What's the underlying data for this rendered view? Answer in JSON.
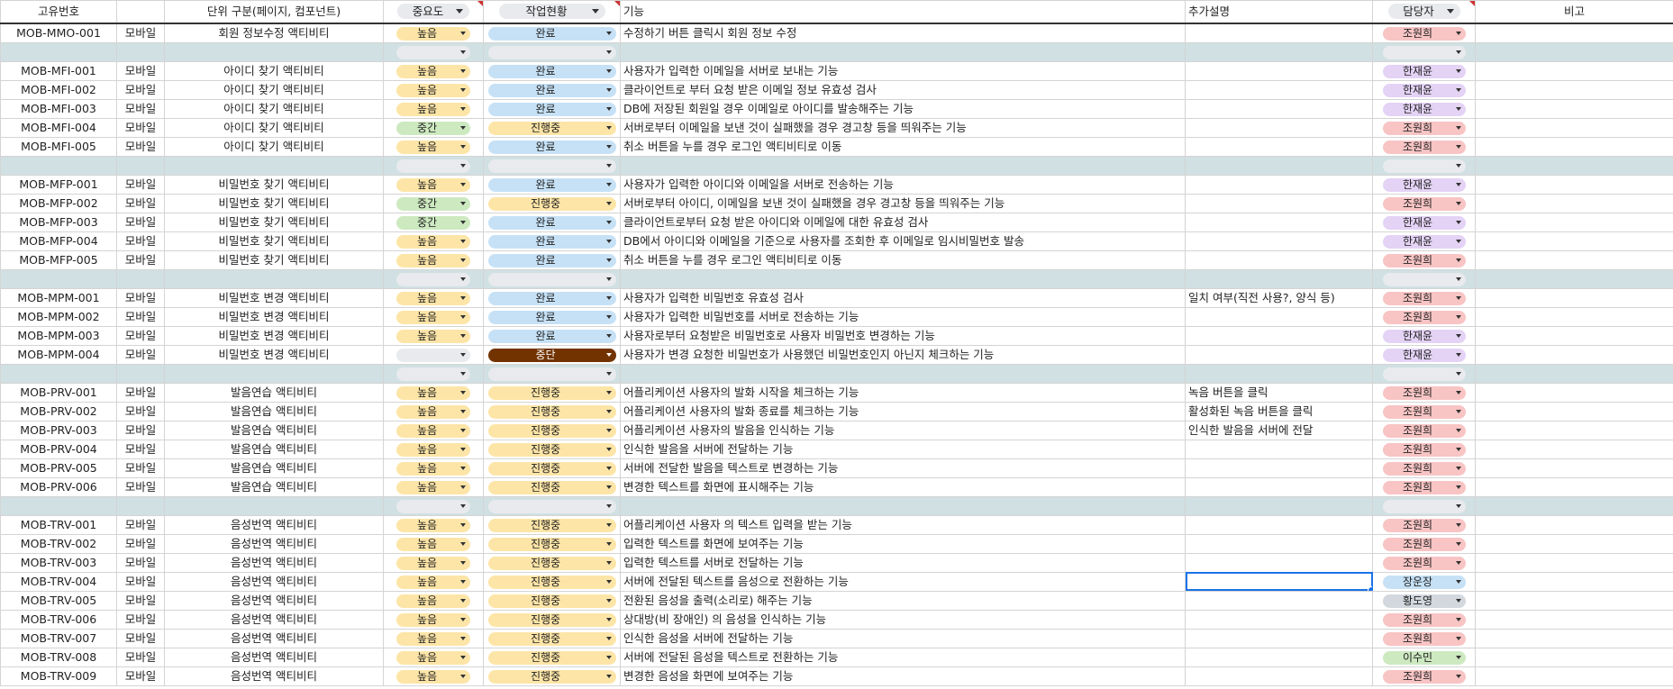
{
  "colors": {
    "imp": {
      "높음": "#fde5a7",
      "중간": "#cde9c0",
      "": "#e8eaed"
    },
    "status": {
      "완료": "#c6e1f6",
      "진행중": "#fde5a7",
      "중단": "#723300",
      "": "#e8eaed"
    },
    "status_text": {
      "중단": "#ffffff"
    },
    "owner": {
      "조원희": "#f8c4c4",
      "한재윤": "#e4d3f5",
      "장운장": "#c6e1f6",
      "황도영": "#d2d8de",
      "이수민": "#cde9c0",
      "": "#e8eaed"
    }
  },
  "headers": {
    "id": "고유번호",
    "type": "",
    "unit": "단위 구분(페이지, 컴포넌트)",
    "importance": "중요도",
    "status": "작업현황",
    "function": "기능",
    "note": "추가설명",
    "owner": "담당자",
    "remarks": "비고"
  },
  "rows": [
    {
      "id": "MOB-MMO-001",
      "type": "모바일",
      "unit": "회원 정보수정 액티비티",
      "imp": "높음",
      "status": "완료",
      "func": "수정하기 버튼 클릭시 회원 정보 수정",
      "note": "",
      "owner": "조원희"
    },
    {
      "sep": true
    },
    {
      "id": "MOB-MFI-001",
      "type": "모바일",
      "unit": "아이디 찾기 액티비티",
      "imp": "높음",
      "status": "완료",
      "func": "사용자가 입력한 이메일을 서버로 보내는 기능",
      "note": "",
      "owner": "한재윤"
    },
    {
      "id": "MOB-MFI-002",
      "type": "모바일",
      "unit": "아이디 찾기 액티비티",
      "imp": "높음",
      "status": "완료",
      "func": "클라이언트로 부터 요청 받은 이메일 정보 유효성 검사",
      "note": "",
      "owner": "한재윤"
    },
    {
      "id": "MOB-MFI-003",
      "type": "모바일",
      "unit": "아이디 찾기 액티비티",
      "imp": "높음",
      "status": "완료",
      "func": "DB에 저장된 회원일 경우 이메일로 아이디를 발송해주는 기능",
      "note": "",
      "owner": "한재윤"
    },
    {
      "id": "MOB-MFI-004",
      "type": "모바일",
      "unit": "아이디 찾기 액티비티",
      "imp": "중간",
      "status": "진행중",
      "func": "서버로부터 이메일을 보낸 것이 실패했을 경우 경고창 등을 띄워주는 기능",
      "note": "",
      "owner": "조원희"
    },
    {
      "id": "MOB-MFI-005",
      "type": "모바일",
      "unit": "아이디 찾기 액티비티",
      "imp": "높음",
      "status": "완료",
      "func": "취소 버튼을 누를 경우 로그인 액티비티로 이동",
      "note": "",
      "owner": "조원희"
    },
    {
      "sep": true
    },
    {
      "id": "MOB-MFP-001",
      "type": "모바일",
      "unit": "비밀번호 찾기 액티비티",
      "imp": "높음",
      "status": "완료",
      "func": "사용자가 입력한 아이디와 이메일을 서버로 전송하는 기능",
      "note": "",
      "owner": "한재윤"
    },
    {
      "id": "MOB-MFP-002",
      "type": "모바일",
      "unit": "비밀번호 찾기 액티비티",
      "imp": "중간",
      "status": "진행중",
      "func": "서버로부터 아이디, 이메일을 보낸 것이 실패했을 경우 경고창 등을 띄워주는 기능",
      "note": "",
      "owner": "조원희"
    },
    {
      "id": "MOB-MFP-003",
      "type": "모바일",
      "unit": "비밀번호 찾기 액티비티",
      "imp": "중간",
      "status": "완료",
      "func": "클라이언트로부터 요청 받은 아이디와 이메일에 대한 유효성 검사",
      "note": "",
      "owner": "한재윤"
    },
    {
      "id": "MOB-MFP-004",
      "type": "모바일",
      "unit": "비밀번호 찾기 액티비티",
      "imp": "높음",
      "status": "완료",
      "func": "DB에서 아이디와 이메일을 기준으로 사용자를 조회한 후 이메일로 임시비밀번호 발송",
      "note": "",
      "owner": "한재윤"
    },
    {
      "id": "MOB-MFP-005",
      "type": "모바일",
      "unit": "비밀번호 찾기 액티비티",
      "imp": "높음",
      "status": "완료",
      "func": "취소 버튼을 누를 경우 로그인 액티비티로 이동",
      "note": "",
      "owner": "조원희"
    },
    {
      "sep": true
    },
    {
      "id": "MOB-MPM-001",
      "type": "모바일",
      "unit": "비밀번호 변경 액티비티",
      "imp": "높음",
      "status": "완료",
      "func": "사용자가 입력한 비밀번호 유효성 검사",
      "note": "일치 여부(직전 사용?, 양식 등)",
      "owner": "조원희"
    },
    {
      "id": "MOB-MPM-002",
      "type": "모바일",
      "unit": "비밀번호 변경 액티비티",
      "imp": "높음",
      "status": "완료",
      "func": "사용자가 입력한 비밀번호를 서버로 전송하는 기능",
      "note": "",
      "owner": "조원희"
    },
    {
      "id": "MOB-MPM-003",
      "type": "모바일",
      "unit": "비밀번호 변경 액티비티",
      "imp": "높음",
      "status": "완료",
      "func": "사용자로부터 요청받은 비밀번호로 사용자 비밀번호 변경하는 기능",
      "note": "",
      "owner": "한재윤"
    },
    {
      "id": "MOB-MPM-004",
      "type": "모바일",
      "unit": "비밀번호 변경 액티비티",
      "imp": "",
      "status": "중단",
      "func": "사용자가 변경 요청한 비밀번호가 사용했던 비밀번호인지 아닌지 체크하는 기능",
      "note": "",
      "owner": "한재윤"
    },
    {
      "sep": true
    },
    {
      "id": "MOB-PRV-001",
      "type": "모바일",
      "unit": "발음연습 액티비티",
      "imp": "높음",
      "status": "진행중",
      "func": "어플리케이션 사용자의 발화 시작을 체크하는 기능",
      "note": "녹음 버튼을 클릭",
      "owner": "조원희"
    },
    {
      "id": "MOB-PRV-002",
      "type": "모바일",
      "unit": "발음연습 액티비티",
      "imp": "높음",
      "status": "진행중",
      "func": "어플리케이션 사용자의 발화 종료를 체크하는 기능",
      "note": "활성화된 녹음 버튼을 클릭",
      "owner": "조원희"
    },
    {
      "id": "MOB-PRV-003",
      "type": "모바일",
      "unit": "발음연습 액티비티",
      "imp": "높음",
      "status": "진행중",
      "func": "어플리케이션 사용자의 발음을 인식하는 기능",
      "note": "인식한 발음을 서버에 전달",
      "owner": "조원희"
    },
    {
      "id": "MOB-PRV-004",
      "type": "모바일",
      "unit": "발음연습 액티비티",
      "imp": "높음",
      "status": "진행중",
      "func": "인식한 발음을 서버에 전달하는 기능",
      "note": "",
      "owner": "조원희"
    },
    {
      "id": "MOB-PRV-005",
      "type": "모바일",
      "unit": "발음연습 액티비티",
      "imp": "높음",
      "status": "진행중",
      "func": "서버에 전달한 발음을 텍스트로 변경하는 기능",
      "note": "",
      "owner": "조원희"
    },
    {
      "id": "MOB-PRV-006",
      "type": "모바일",
      "unit": "발음연습 액티비티",
      "imp": "높음",
      "status": "진행중",
      "func": "변경한 텍스트를 화면에 표시해주는 기능",
      "note": "",
      "owner": "조원희"
    },
    {
      "sep": true
    },
    {
      "id": "MOB-TRV-001",
      "type": "모바일",
      "unit": "음성번역 액티비티",
      "imp": "높음",
      "status": "진행중",
      "func": "어플리케이션 사용자 의 텍스트 입력을 받는 기능",
      "note": "",
      "owner": "조원희"
    },
    {
      "id": "MOB-TRV-002",
      "type": "모바일",
      "unit": "음성번역 액티비티",
      "imp": "높음",
      "status": "진행중",
      "func": "입력한 텍스트를 화면에 보여주는 기능",
      "note": "",
      "owner": "조원희"
    },
    {
      "id": "MOB-TRV-003",
      "type": "모바일",
      "unit": "음성번역 액티비티",
      "imp": "높음",
      "status": "진행중",
      "func": "입력한 텍스트를 서버로 전달하는 기능",
      "note": "",
      "owner": "조원희"
    },
    {
      "id": "MOB-TRV-004",
      "type": "모바일",
      "unit": "음성번역 액티비티",
      "imp": "높음",
      "status": "진행중",
      "func": "서버에 전달된 텍스트를 음성으로 전환하는 기능",
      "note": "",
      "owner": "장운장",
      "selected": true
    },
    {
      "id": "MOB-TRV-005",
      "type": "모바일",
      "unit": "음성번역 액티비티",
      "imp": "높음",
      "status": "진행중",
      "func": "전환된 음성을 출력(소리로) 해주는 기능",
      "note": "",
      "owner": "황도영"
    },
    {
      "id": "MOB-TRV-006",
      "type": "모바일",
      "unit": "음성번역 액티비티",
      "imp": "높음",
      "status": "진행중",
      "func": "상대방(비 장애인) 의 음성을 인식하는 기능",
      "note": "",
      "owner": "조원희"
    },
    {
      "id": "MOB-TRV-007",
      "type": "모바일",
      "unit": "음성번역 액티비티",
      "imp": "높음",
      "status": "진행중",
      "func": "인식한 음성을 서버에 전달하는 기능",
      "note": "",
      "owner": "조원희"
    },
    {
      "id": "MOB-TRV-008",
      "type": "모바일",
      "unit": "음성번역 액티비티",
      "imp": "높음",
      "status": "진행중",
      "func": "서버에 전달된 음성을 텍스트로 전환하는 기능",
      "note": "",
      "owner": "이수민"
    },
    {
      "id": "MOB-TRV-009",
      "type": "모바일",
      "unit": "음성번역 액티비티",
      "imp": "높음",
      "status": "진행중",
      "func": "변경한 음성을 화면에 보여주는 기능",
      "note": "",
      "owner": "조원희"
    }
  ]
}
